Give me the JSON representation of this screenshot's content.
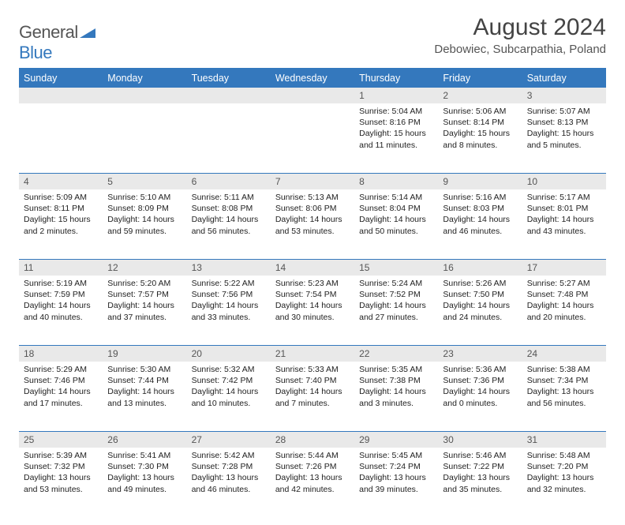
{
  "logo": {
    "word1": "General",
    "word2": "Blue"
  },
  "title": "August 2024",
  "subtitle": "Debowiec, Subcarpathia, Poland",
  "colors": {
    "accent": "#3478bd",
    "daynum_bg": "#e9e9e9",
    "text": "#222222",
    "muted": "#555555",
    "white": "#ffffff"
  },
  "fonts": {
    "title_pt": 30,
    "subtitle_pt": 15,
    "header_pt": 12.5,
    "body_pt": 10.5,
    "daynum_pt": 12
  },
  "day_headers": [
    "Sunday",
    "Monday",
    "Tuesday",
    "Wednesday",
    "Thursday",
    "Friday",
    "Saturday"
  ],
  "weeks": [
    [
      {},
      {},
      {},
      {},
      {
        "n": "1",
        "sunrise": "5:04 AM",
        "sunset": "8:16 PM",
        "daylight": "15 hours and 11 minutes."
      },
      {
        "n": "2",
        "sunrise": "5:06 AM",
        "sunset": "8:14 PM",
        "daylight": "15 hours and 8 minutes."
      },
      {
        "n": "3",
        "sunrise": "5:07 AM",
        "sunset": "8:13 PM",
        "daylight": "15 hours and 5 minutes."
      }
    ],
    [
      {
        "n": "4",
        "sunrise": "5:09 AM",
        "sunset": "8:11 PM",
        "daylight": "15 hours and 2 minutes."
      },
      {
        "n": "5",
        "sunrise": "5:10 AM",
        "sunset": "8:09 PM",
        "daylight": "14 hours and 59 minutes."
      },
      {
        "n": "6",
        "sunrise": "5:11 AM",
        "sunset": "8:08 PM",
        "daylight": "14 hours and 56 minutes."
      },
      {
        "n": "7",
        "sunrise": "5:13 AM",
        "sunset": "8:06 PM",
        "daylight": "14 hours and 53 minutes."
      },
      {
        "n": "8",
        "sunrise": "5:14 AM",
        "sunset": "8:04 PM",
        "daylight": "14 hours and 50 minutes."
      },
      {
        "n": "9",
        "sunrise": "5:16 AM",
        "sunset": "8:03 PM",
        "daylight": "14 hours and 46 minutes."
      },
      {
        "n": "10",
        "sunrise": "5:17 AM",
        "sunset": "8:01 PM",
        "daylight": "14 hours and 43 minutes."
      }
    ],
    [
      {
        "n": "11",
        "sunrise": "5:19 AM",
        "sunset": "7:59 PM",
        "daylight": "14 hours and 40 minutes."
      },
      {
        "n": "12",
        "sunrise": "5:20 AM",
        "sunset": "7:57 PM",
        "daylight": "14 hours and 37 minutes."
      },
      {
        "n": "13",
        "sunrise": "5:22 AM",
        "sunset": "7:56 PM",
        "daylight": "14 hours and 33 minutes."
      },
      {
        "n": "14",
        "sunrise": "5:23 AM",
        "sunset": "7:54 PM",
        "daylight": "14 hours and 30 minutes."
      },
      {
        "n": "15",
        "sunrise": "5:24 AM",
        "sunset": "7:52 PM",
        "daylight": "14 hours and 27 minutes."
      },
      {
        "n": "16",
        "sunrise": "5:26 AM",
        "sunset": "7:50 PM",
        "daylight": "14 hours and 24 minutes."
      },
      {
        "n": "17",
        "sunrise": "5:27 AM",
        "sunset": "7:48 PM",
        "daylight": "14 hours and 20 minutes."
      }
    ],
    [
      {
        "n": "18",
        "sunrise": "5:29 AM",
        "sunset": "7:46 PM",
        "daylight": "14 hours and 17 minutes."
      },
      {
        "n": "19",
        "sunrise": "5:30 AM",
        "sunset": "7:44 PM",
        "daylight": "14 hours and 13 minutes."
      },
      {
        "n": "20",
        "sunrise": "5:32 AM",
        "sunset": "7:42 PM",
        "daylight": "14 hours and 10 minutes."
      },
      {
        "n": "21",
        "sunrise": "5:33 AM",
        "sunset": "7:40 PM",
        "daylight": "14 hours and 7 minutes."
      },
      {
        "n": "22",
        "sunrise": "5:35 AM",
        "sunset": "7:38 PM",
        "daylight": "14 hours and 3 minutes."
      },
      {
        "n": "23",
        "sunrise": "5:36 AM",
        "sunset": "7:36 PM",
        "daylight": "14 hours and 0 minutes."
      },
      {
        "n": "24",
        "sunrise": "5:38 AM",
        "sunset": "7:34 PM",
        "daylight": "13 hours and 56 minutes."
      }
    ],
    [
      {
        "n": "25",
        "sunrise": "5:39 AM",
        "sunset": "7:32 PM",
        "daylight": "13 hours and 53 minutes."
      },
      {
        "n": "26",
        "sunrise": "5:41 AM",
        "sunset": "7:30 PM",
        "daylight": "13 hours and 49 minutes."
      },
      {
        "n": "27",
        "sunrise": "5:42 AM",
        "sunset": "7:28 PM",
        "daylight": "13 hours and 46 minutes."
      },
      {
        "n": "28",
        "sunrise": "5:44 AM",
        "sunset": "7:26 PM",
        "daylight": "13 hours and 42 minutes."
      },
      {
        "n": "29",
        "sunrise": "5:45 AM",
        "sunset": "7:24 PM",
        "daylight": "13 hours and 39 minutes."
      },
      {
        "n": "30",
        "sunrise": "5:46 AM",
        "sunset": "7:22 PM",
        "daylight": "13 hours and 35 minutes."
      },
      {
        "n": "31",
        "sunrise": "5:48 AM",
        "sunset": "7:20 PM",
        "daylight": "13 hours and 32 minutes."
      }
    ]
  ],
  "labels": {
    "sunrise": "Sunrise: ",
    "sunset": "Sunset: ",
    "daylight": "Daylight: "
  }
}
